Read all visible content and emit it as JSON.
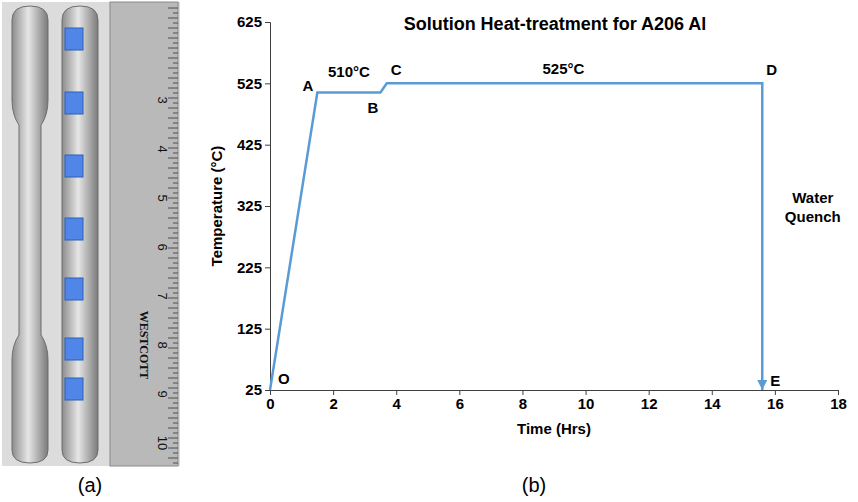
{
  "chart_data": {
    "type": "line",
    "title": "Solution Heat-treatment for A206 Al",
    "x_label": "Time (Hrs)",
    "y_label": "Temperature (°C)",
    "x": [
      0,
      1.5,
      3.5,
      3.7,
      15.6,
      15.6
    ],
    "values": [
      25,
      510,
      510,
      525,
      525,
      25
    ],
    "point_labels": [
      "O",
      "A",
      "B",
      "C",
      "D",
      "E"
    ],
    "color": "#5b9bd5",
    "xlim": [
      0,
      18
    ],
    "xticks": [
      0,
      2,
      4,
      6,
      8,
      10,
      12,
      14,
      16,
      18
    ],
    "ylim": [
      25,
      625
    ],
    "yticks": [
      25,
      125,
      225,
      325,
      425,
      525,
      625
    ],
    "grid": false,
    "annotations": [
      {
        "text": "510°C",
        "x": 2.5,
        "y": 535
      },
      {
        "text": "525°C",
        "x": 9.3,
        "y": 540
      },
      {
        "text": "Water Quench",
        "x": 17.2,
        "y": 330
      }
    ]
  },
  "panel_labels": [
    "(a)",
    "(b)"
  ],
  "photo": {
    "ruler_numbers": [
      3,
      4,
      5,
      6,
      7,
      8,
      9,
      10
    ],
    "ruler_brand": "WESTCOTT"
  }
}
